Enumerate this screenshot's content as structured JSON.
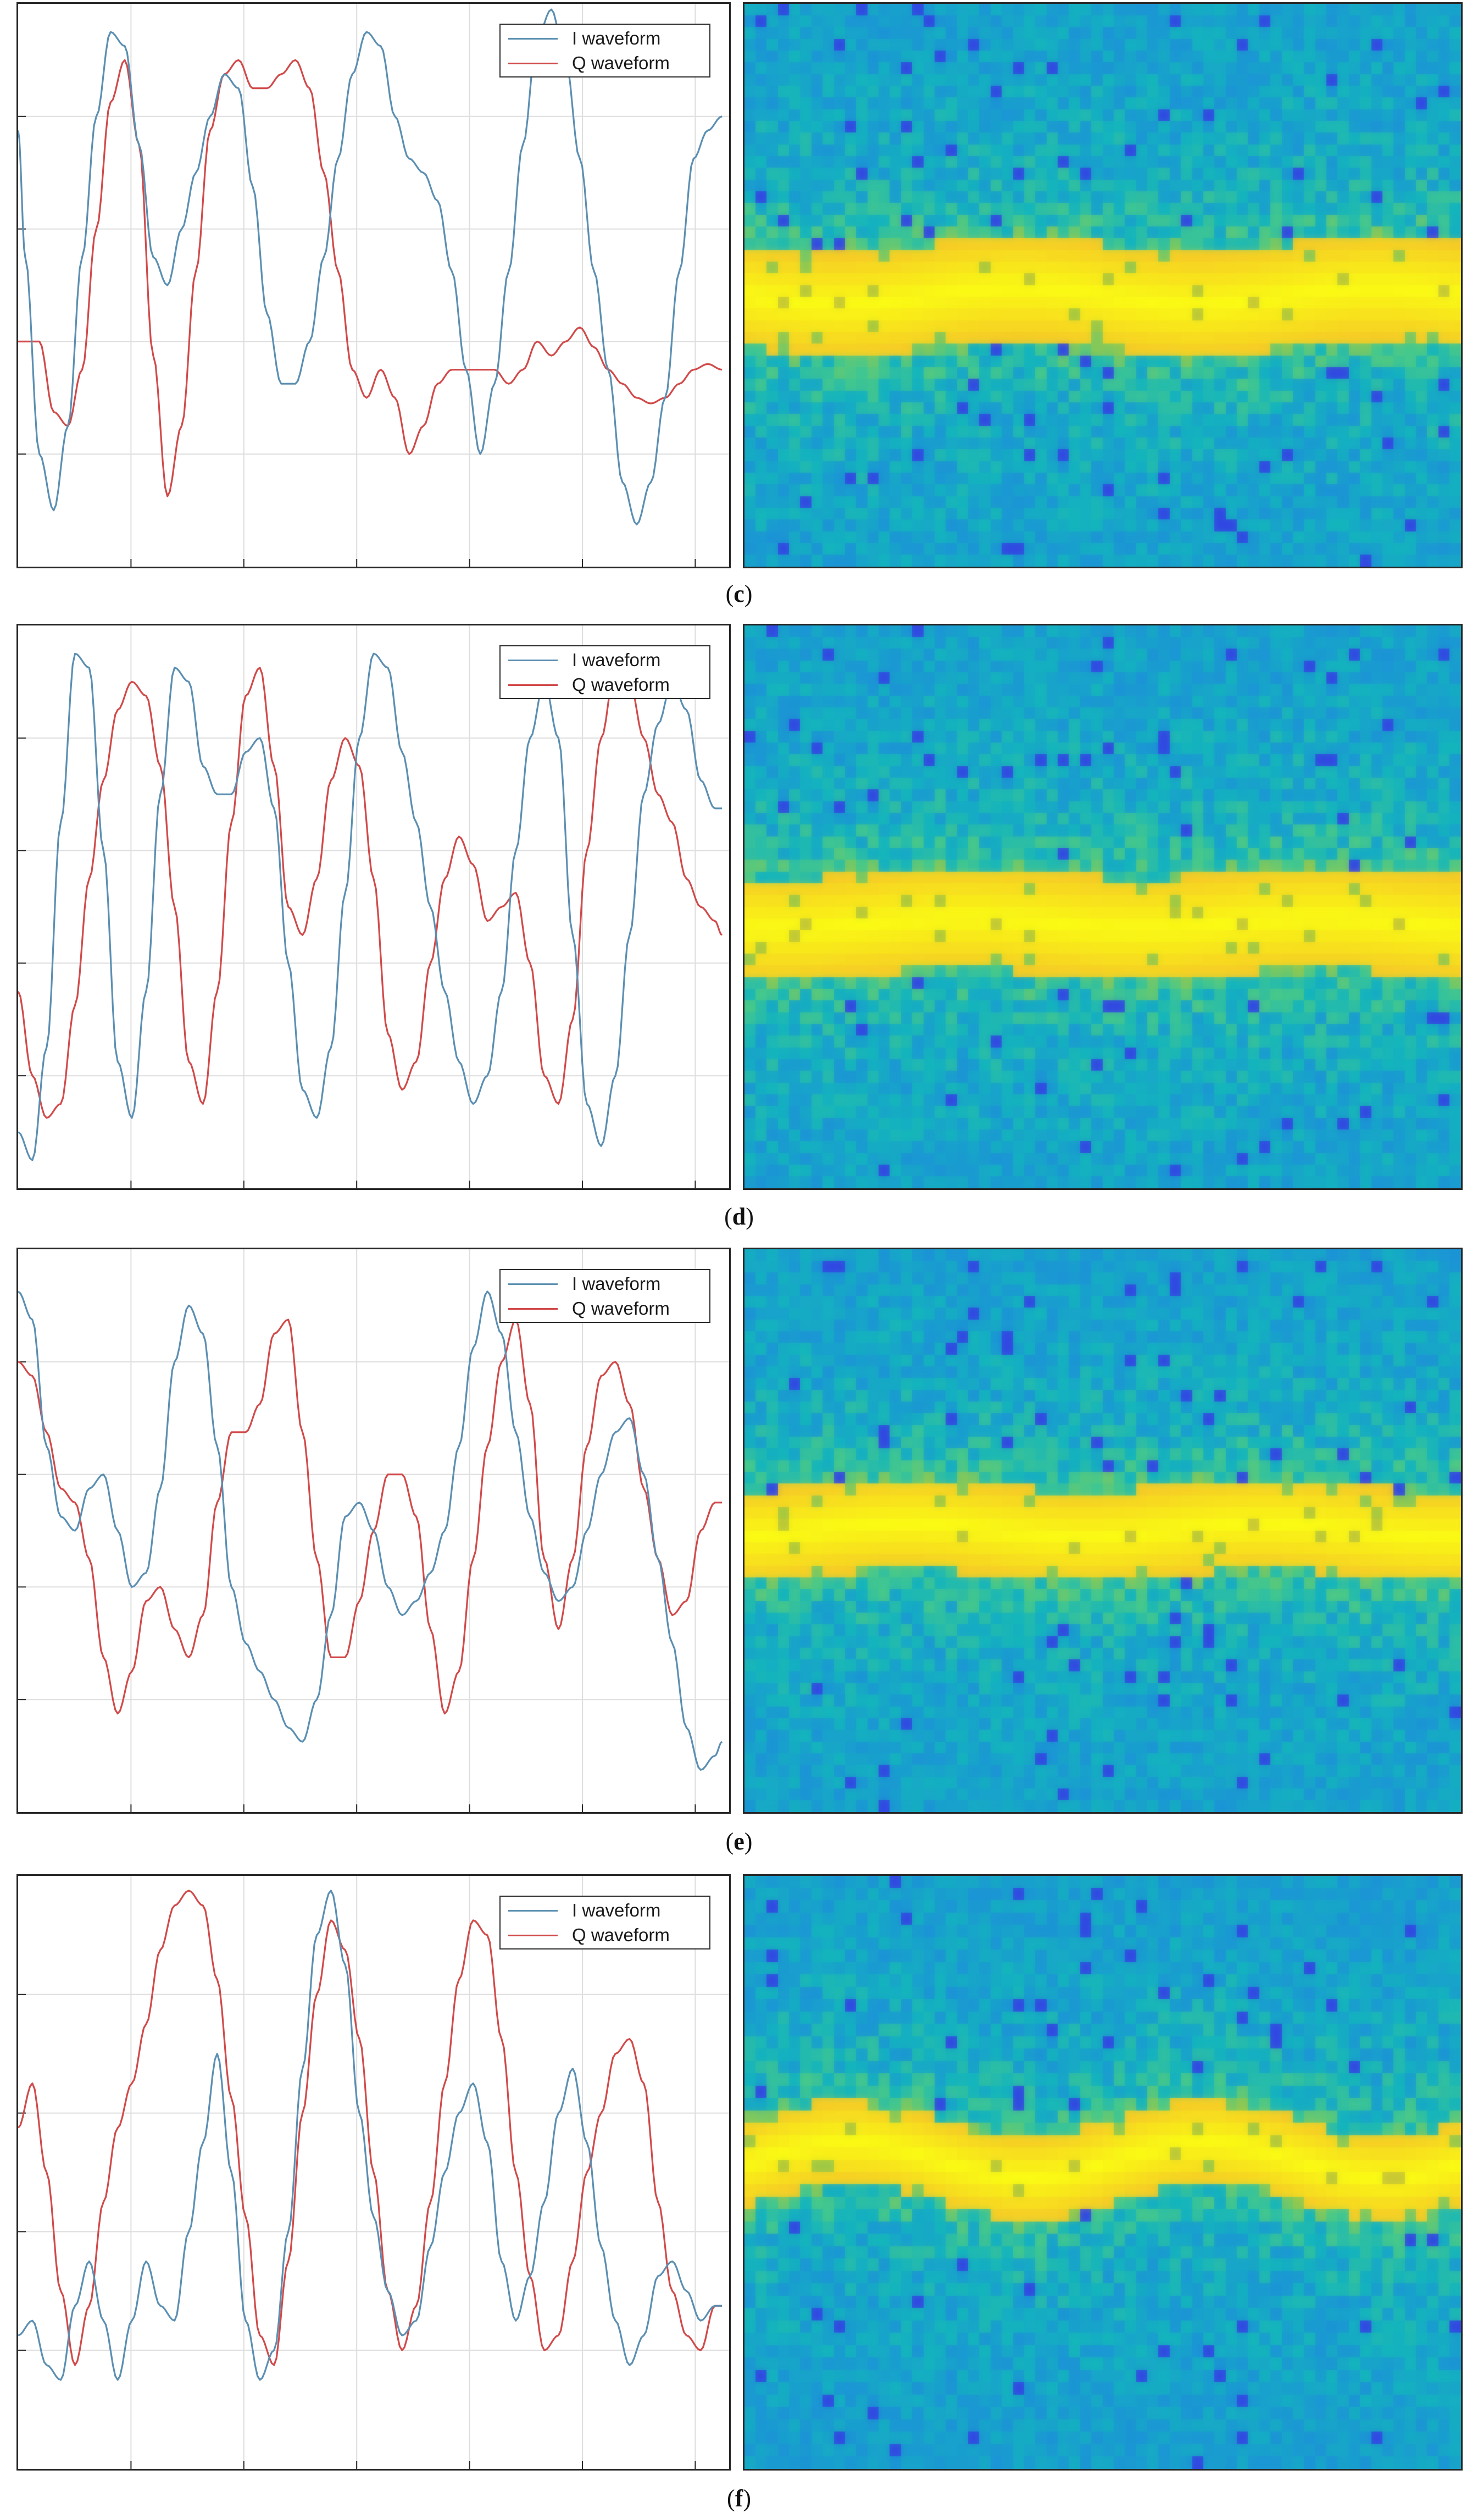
{
  "colors": {
    "i_waveform": "#5b8fb2",
    "q_waveform": "#d14a4a",
    "grid": "#dedede"
  },
  "legend": {
    "i_label": "I waveform",
    "q_label": "Q waveform"
  },
  "chart_data": [
    {
      "type": "line",
      "panel": "top",
      "caption_letter": "c",
      "xlim": [
        0,
        1
      ],
      "ylim": [
        -1,
        1
      ],
      "grid": true,
      "legend_position": "top-right",
      "series": [
        {
          "name": "I waveform",
          "x": [
            0,
            0.01,
            0.03,
            0.05,
            0.07,
            0.09,
            0.11,
            0.13,
            0.15,
            0.17,
            0.19,
            0.21,
            0.23,
            0.25,
            0.27,
            0.29,
            0.31,
            0.33,
            0.35,
            0.37,
            0.39,
            0.41,
            0.43,
            0.45,
            0.47,
            0.49,
            0.51,
            0.53,
            0.55,
            0.57,
            0.59,
            0.61,
            0.63,
            0.65,
            0.67,
            0.69,
            0.71,
            0.73,
            0.75,
            0.77,
            0.79,
            0.81,
            0.83,
            0.85,
            0.87,
            0.89,
            0.91,
            0.93,
            0.95,
            0.97,
            0.99
          ],
          "y": [
            0.55,
            0.1,
            -0.6,
            -0.8,
            -0.5,
            0.1,
            0.6,
            0.9,
            0.85,
            0.5,
            0.1,
            0.0,
            0.2,
            0.4,
            0.6,
            0.75,
            0.7,
            0.35,
            -0.1,
            -0.35,
            -0.35,
            -0.2,
            0.1,
            0.45,
            0.75,
            0.9,
            0.85,
            0.6,
            0.45,
            0.4,
            0.3,
            0.05,
            -0.3,
            -0.6,
            -0.35,
            0.05,
            0.5,
            0.88,
            0.98,
            0.8,
            0.45,
            0.05,
            -0.3,
            -0.7,
            -0.85,
            -0.7,
            -0.4,
            0.05,
            0.45,
            0.55,
            0.6
          ]
        },
        {
          "name": "Q waveform",
          "x": [
            0,
            0.01,
            0.03,
            0.05,
            0.07,
            0.09,
            0.11,
            0.13,
            0.15,
            0.17,
            0.19,
            0.21,
            0.23,
            0.25,
            0.27,
            0.29,
            0.31,
            0.33,
            0.35,
            0.37,
            0.39,
            0.41,
            0.43,
            0.45,
            0.47,
            0.49,
            0.51,
            0.53,
            0.55,
            0.57,
            0.59,
            0.61,
            0.63,
            0.65,
            0.67,
            0.69,
            0.71,
            0.73,
            0.75,
            0.77,
            0.79,
            0.81,
            0.83,
            0.85,
            0.87,
            0.89,
            0.91,
            0.93,
            0.95,
            0.97,
            0.99
          ],
          "y": [
            -0.2,
            -0.2,
            -0.2,
            -0.45,
            -0.5,
            -0.3,
            0.2,
            0.65,
            0.8,
            0.5,
            -0.25,
            -0.75,
            -0.5,
            0.05,
            0.55,
            0.75,
            0.8,
            0.7,
            0.7,
            0.75,
            0.8,
            0.7,
            0.4,
            0.05,
            -0.3,
            -0.4,
            -0.3,
            -0.4,
            -0.6,
            -0.5,
            -0.35,
            -0.3,
            -0.3,
            -0.3,
            -0.3,
            -0.35,
            -0.3,
            -0.2,
            -0.25,
            -0.2,
            -0.15,
            -0.22,
            -0.3,
            -0.35,
            -0.4,
            -0.42,
            -0.4,
            -0.35,
            -0.3,
            -0.28,
            -0.3
          ]
        }
      ]
    },
    {
      "type": "line",
      "panel": "second",
      "caption_letter": "d",
      "xlim": [
        0,
        1
      ],
      "ylim": [
        -1,
        1
      ],
      "grid": true,
      "legend_position": "top-right",
      "series": [
        {
          "name": "I waveform",
          "x": [
            0,
            0.02,
            0.04,
            0.06,
            0.08,
            0.1,
            0.12,
            0.14,
            0.16,
            0.18,
            0.2,
            0.22,
            0.24,
            0.26,
            0.28,
            0.3,
            0.32,
            0.34,
            0.36,
            0.38,
            0.4,
            0.42,
            0.44,
            0.46,
            0.48,
            0.5,
            0.52,
            0.54,
            0.56,
            0.58,
            0.6,
            0.62,
            0.64,
            0.66,
            0.68,
            0.7,
            0.72,
            0.74,
            0.76,
            0.78,
            0.8,
            0.82,
            0.84,
            0.86,
            0.88,
            0.9,
            0.92,
            0.94,
            0.96,
            0.98,
            0.99
          ],
          "y": [
            -0.8,
            -0.9,
            -0.5,
            0.3,
            0.9,
            0.85,
            0.2,
            -0.55,
            -0.75,
            -0.3,
            0.4,
            0.85,
            0.8,
            0.5,
            0.4,
            0.4,
            0.55,
            0.6,
            0.35,
            -0.2,
            -0.65,
            -0.75,
            -0.5,
            0.05,
            0.6,
            0.9,
            0.85,
            0.55,
            0.3,
            0.0,
            -0.3,
            -0.55,
            -0.7,
            -0.6,
            -0.3,
            0.2,
            0.6,
            0.8,
            0.6,
            -0.1,
            -0.7,
            -0.85,
            -0.6,
            -0.1,
            0.4,
            0.65,
            0.8,
            0.7,
            0.45,
            0.35,
            0.35
          ]
        },
        {
          "name": "Q waveform",
          "x": [
            0,
            0.02,
            0.04,
            0.06,
            0.08,
            0.1,
            0.12,
            0.14,
            0.16,
            0.18,
            0.2,
            0.22,
            0.24,
            0.26,
            0.28,
            0.3,
            0.32,
            0.34,
            0.36,
            0.38,
            0.4,
            0.42,
            0.44,
            0.46,
            0.48,
            0.5,
            0.52,
            0.54,
            0.56,
            0.58,
            0.6,
            0.62,
            0.64,
            0.66,
            0.68,
            0.7,
            0.72,
            0.74,
            0.76,
            0.78,
            0.8,
            0.82,
            0.84,
            0.86,
            0.88,
            0.9,
            0.92,
            0.94,
            0.96,
            0.98,
            0.99
          ],
          "y": [
            -0.3,
            -0.6,
            -0.75,
            -0.7,
            -0.35,
            0.1,
            0.45,
            0.7,
            0.8,
            0.75,
            0.5,
            0.0,
            -0.55,
            -0.7,
            -0.3,
            0.3,
            0.75,
            0.85,
            0.5,
            0.0,
            -0.1,
            0.1,
            0.45,
            0.6,
            0.5,
            0.1,
            -0.45,
            -0.65,
            -0.55,
            -0.2,
            0.1,
            0.25,
            0.15,
            -0.05,
            0.0,
            0.05,
            -0.2,
            -0.6,
            -0.7,
            -0.4,
            0.2,
            0.6,
            0.85,
            0.8,
            0.6,
            0.4,
            0.3,
            0.1,
            0.0,
            -0.05,
            -0.1
          ]
        }
      ]
    },
    {
      "type": "line",
      "panel": "third",
      "caption_letter": "e",
      "xlim": [
        0,
        1
      ],
      "ylim": [
        -1,
        1
      ],
      "grid": true,
      "legend_position": "top-right",
      "series": [
        {
          "name": "I waveform",
          "x": [
            0,
            0.02,
            0.04,
            0.06,
            0.08,
            0.1,
            0.12,
            0.14,
            0.16,
            0.18,
            0.2,
            0.22,
            0.24,
            0.26,
            0.28,
            0.3,
            0.32,
            0.34,
            0.36,
            0.38,
            0.4,
            0.42,
            0.44,
            0.46,
            0.48,
            0.5,
            0.52,
            0.54,
            0.56,
            0.58,
            0.6,
            0.62,
            0.64,
            0.66,
            0.68,
            0.7,
            0.72,
            0.74,
            0.76,
            0.78,
            0.8,
            0.82,
            0.84,
            0.86,
            0.88,
            0.9,
            0.92,
            0.94,
            0.96,
            0.98,
            0.99
          ],
          "y": [
            0.85,
            0.75,
            0.3,
            0.05,
            0.0,
            0.15,
            0.2,
            0.0,
            -0.2,
            -0.15,
            0.15,
            0.6,
            0.8,
            0.7,
            0.3,
            -0.2,
            -0.4,
            -0.5,
            -0.6,
            -0.7,
            -0.75,
            -0.6,
            -0.3,
            0.05,
            0.1,
            0.0,
            -0.2,
            -0.3,
            -0.25,
            -0.15,
            0.0,
            0.3,
            0.65,
            0.85,
            0.7,
            0.35,
            0.05,
            -0.15,
            -0.25,
            -0.2,
            0.0,
            0.2,
            0.35,
            0.4,
            0.2,
            -0.1,
            -0.4,
            -0.7,
            -0.85,
            -0.8,
            -0.75
          ]
        },
        {
          "name": "Q waveform",
          "x": [
            0,
            0.02,
            0.04,
            0.06,
            0.08,
            0.1,
            0.12,
            0.14,
            0.16,
            0.18,
            0.2,
            0.22,
            0.24,
            0.26,
            0.28,
            0.3,
            0.32,
            0.34,
            0.36,
            0.38,
            0.4,
            0.42,
            0.44,
            0.46,
            0.48,
            0.5,
            0.52,
            0.54,
            0.56,
            0.58,
            0.6,
            0.62,
            0.64,
            0.66,
            0.68,
            0.7,
            0.72,
            0.74,
            0.76,
            0.78,
            0.8,
            0.82,
            0.84,
            0.86,
            0.88,
            0.9,
            0.92,
            0.94,
            0.96,
            0.98,
            0.99
          ],
          "y": [
            0.6,
            0.55,
            0.35,
            0.15,
            0.1,
            -0.1,
            -0.45,
            -0.65,
            -0.5,
            -0.25,
            -0.2,
            -0.35,
            -0.45,
            -0.3,
            0.1,
            0.35,
            0.35,
            0.45,
            0.7,
            0.75,
            0.35,
            -0.1,
            -0.45,
            -0.45,
            -0.25,
            0.0,
            0.2,
            0.2,
            0.05,
            -0.35,
            -0.65,
            -0.5,
            -0.1,
            0.3,
            0.6,
            0.75,
            0.45,
            -0.1,
            -0.35,
            -0.1,
            0.3,
            0.55,
            0.6,
            0.45,
            0.15,
            -0.1,
            -0.3,
            -0.25,
            0.0,
            0.1,
            0.1
          ]
        }
      ]
    },
    {
      "type": "line",
      "panel": "bottom",
      "caption_letter": "f",
      "xlim": [
        0,
        1
      ],
      "ylim": [
        -1,
        1
      ],
      "grid": true,
      "legend_position": "top-right",
      "series": [
        {
          "name": "I waveform",
          "x": [
            0,
            0.02,
            0.04,
            0.06,
            0.08,
            0.1,
            0.12,
            0.14,
            0.16,
            0.18,
            0.2,
            0.22,
            0.24,
            0.26,
            0.28,
            0.3,
            0.32,
            0.34,
            0.36,
            0.38,
            0.4,
            0.42,
            0.44,
            0.46,
            0.48,
            0.5,
            0.52,
            0.54,
            0.56,
            0.58,
            0.6,
            0.62,
            0.64,
            0.66,
            0.68,
            0.7,
            0.72,
            0.74,
            0.76,
            0.78,
            0.8,
            0.82,
            0.84,
            0.86,
            0.88,
            0.9,
            0.92,
            0.94,
            0.96,
            0.98,
            0.99
          ],
          "y": [
            -0.55,
            -0.5,
            -0.65,
            -0.7,
            -0.45,
            -0.3,
            -0.5,
            -0.7,
            -0.5,
            -0.3,
            -0.45,
            -0.5,
            -0.2,
            0.1,
            0.4,
            0.0,
            -0.5,
            -0.7,
            -0.6,
            -0.2,
            0.35,
            0.8,
            0.95,
            0.7,
            0.2,
            -0.15,
            -0.4,
            -0.55,
            -0.5,
            -0.25,
            0.0,
            0.2,
            0.3,
            0.1,
            -0.3,
            -0.5,
            -0.35,
            -0.1,
            0.2,
            0.35,
            0.1,
            -0.25,
            -0.5,
            -0.65,
            -0.55,
            -0.35,
            -0.3,
            -0.4,
            -0.5,
            -0.45,
            -0.45
          ]
        },
        {
          "name": "Q waveform",
          "x": [
            0,
            0.02,
            0.04,
            0.06,
            0.08,
            0.1,
            0.12,
            0.14,
            0.16,
            0.18,
            0.2,
            0.22,
            0.24,
            0.26,
            0.28,
            0.3,
            0.32,
            0.34,
            0.36,
            0.38,
            0.4,
            0.42,
            0.44,
            0.46,
            0.48,
            0.5,
            0.52,
            0.54,
            0.56,
            0.58,
            0.6,
            0.62,
            0.64,
            0.66,
            0.68,
            0.7,
            0.72,
            0.74,
            0.76,
            0.78,
            0.8,
            0.82,
            0.84,
            0.86,
            0.88,
            0.9,
            0.92,
            0.94,
            0.96,
            0.98,
            0.99
          ],
          "y": [
            0.15,
            0.3,
            0.0,
            -0.4,
            -0.65,
            -0.45,
            -0.1,
            0.15,
            0.3,
            0.5,
            0.75,
            0.9,
            0.95,
            0.9,
            0.65,
            0.25,
            -0.15,
            -0.55,
            -0.65,
            -0.3,
            0.2,
            0.6,
            0.85,
            0.75,
            0.45,
            0.0,
            -0.4,
            -0.6,
            -0.45,
            -0.1,
            0.3,
            0.65,
            0.85,
            0.8,
            0.45,
            0.0,
            -0.35,
            -0.6,
            -0.55,
            -0.3,
            0.0,
            0.2,
            0.4,
            0.45,
            0.3,
            -0.1,
            -0.4,
            -0.55,
            -0.6,
            -0.45,
            -0.45
          ]
        }
      ]
    }
  ],
  "captions": [
    "c",
    "d",
    "e",
    "f"
  ]
}
